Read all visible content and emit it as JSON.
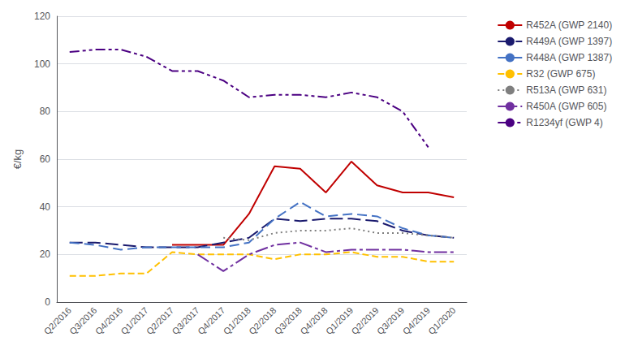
{
  "chart_data": {
    "type": "line",
    "categories": [
      "Q2/2016",
      "Q3/2016",
      "Q4/2016",
      "Q1/2017",
      "Q2/2017",
      "Q3/2017",
      "Q4/2017",
      "Q1/2018",
      "Q2/2018",
      "Q3/2018",
      "Q4/2018",
      "Q1/2019",
      "Q2/2019",
      "Q3/2019",
      "Q4/2019",
      "Q1/2020"
    ],
    "series": [
      {
        "name": "R452A (GWP 2140)",
        "color": "#c00000",
        "line_style": "solid",
        "values": [
          null,
          null,
          null,
          null,
          24,
          24,
          24,
          37,
          57,
          56,
          46,
          59,
          49,
          46,
          46,
          44
        ]
      },
      {
        "name": "R449A (GWP 1397)",
        "color": "#1a1a6e",
        "line_style": "heavy_dash",
        "values": [
          25,
          25,
          24,
          23,
          23,
          23,
          25,
          27,
          35,
          34,
          35,
          35,
          34,
          30,
          28,
          27
        ]
      },
      {
        "name": "R448A (GWP 1387)",
        "color": "#4472c4",
        "line_style": "medium_dash",
        "values": [
          25,
          24,
          22,
          23,
          23,
          23,
          23,
          25,
          35,
          42,
          36,
          37,
          36,
          31,
          28,
          27
        ]
      },
      {
        "name": "R32 (GWP 675)",
        "color": "#ffc000",
        "line_style": "short_dash",
        "values": [
          11,
          11,
          12,
          12,
          21,
          20,
          20,
          20,
          18,
          20,
          20,
          21,
          19,
          19,
          17,
          17
        ]
      },
      {
        "name": "R513A (GWP 631)",
        "color": "#7f7f7f",
        "line_style": "dotted",
        "values": [
          null,
          null,
          null,
          null,
          null,
          null,
          27,
          26,
          29,
          30,
          30,
          31,
          29,
          29,
          28,
          27
        ]
      },
      {
        "name": "R450A (GWP 605)",
        "color": "#7030a0",
        "line_style": "dashdot",
        "values": [
          null,
          null,
          null,
          null,
          null,
          20,
          13,
          20,
          24,
          25,
          21,
          22,
          22,
          22,
          21,
          21
        ]
      },
      {
        "name": "R1234yf (GWP 4)",
        "color": "#4b0082",
        "line_style": "dashdotdot",
        "values": [
          105,
          106,
          106,
          103,
          97,
          97,
          93,
          86,
          87,
          87,
          86,
          88,
          86,
          80,
          65,
          null
        ]
      }
    ],
    "ylabel": "€/kg",
    "ylim": [
      0,
      120
    ],
    "yticks": [
      0,
      20,
      40,
      60,
      80,
      100,
      120
    ],
    "grid": true,
    "legend": "upper right"
  }
}
